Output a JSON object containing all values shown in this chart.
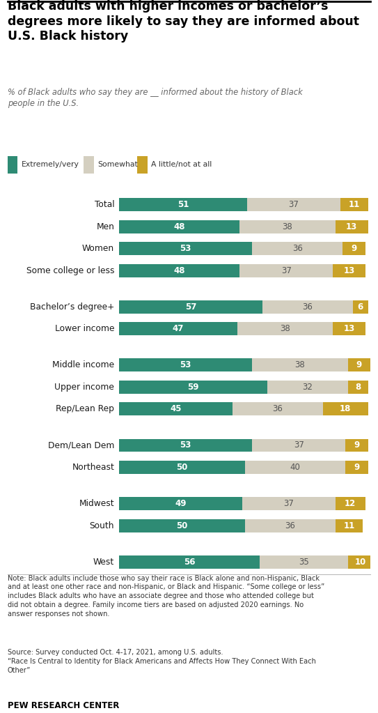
{
  "title": "Black adults with higher incomes or bachelor’s\ndegrees more likely to say they are informed about\nU.S. Black history",
  "subtitle": "% of Black adults who say they are __ informed about the history of Black\npeople in the U.S.",
  "categories": [
    "Total",
    "Men",
    "Women",
    "Some college or less",
    "Bachelor’s degree+",
    "Lower income",
    "Middle income",
    "Upper income",
    "Rep/Lean Rep",
    "Dem/Lean Dem",
    "Northeast",
    "Midwest",
    "South",
    "West"
  ],
  "extremely_very": [
    51,
    48,
    53,
    48,
    57,
    47,
    53,
    59,
    45,
    53,
    50,
    49,
    50,
    56
  ],
  "somewhat": [
    37,
    38,
    36,
    37,
    36,
    38,
    38,
    32,
    36,
    37,
    40,
    37,
    36,
    35
  ],
  "little_not_at_all": [
    11,
    13,
    9,
    13,
    6,
    13,
    9,
    8,
    18,
    9,
    9,
    12,
    11,
    10
  ],
  "color_extremely": "#2e8b74",
  "color_somewhat": "#d4cfc0",
  "color_little": "#c9a227",
  "legend_labels": [
    "Extremely/very",
    "Somewhat",
    "A little/not at all"
  ],
  "note1": "Note: Black adults include those who say their race is Black alone and non-Hispanic, Black",
  "note2": "and at least one other race and non-Hispanic, or Black and Hispanic. “Some college or less”",
  "note3": "includes Black adults who have an associate degree and those who attended college but",
  "note4": "did not obtain a degree. Family income tiers are based on adjusted 2020 earnings. No",
  "note5": "answer responses not shown.",
  "source1": "Source: Survey conducted Oct. 4-17, 2021, among U.S. adults.",
  "source2": "“Race Is Central to Identity for Black Americans and Affects How They Connect With Each",
  "source3": "Other”",
  "pew": "PEW RESEARCH CENTER",
  "groups": [
    1,
    2,
    2,
    3,
    2,
    4
  ],
  "bar_height": 0.6
}
